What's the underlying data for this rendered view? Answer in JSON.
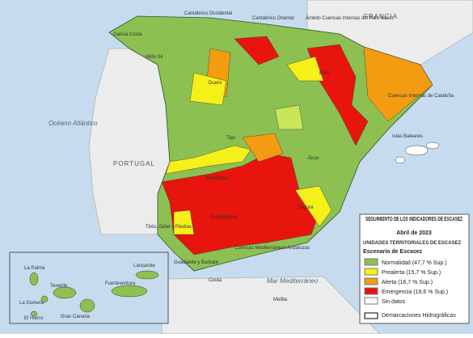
{
  "labels": {
    "france": "FRANCIA",
    "ocean": "Océano Atlántico",
    "portugal": "PORTUGAL",
    "sea": "Mar Mediterráneo",
    "baleares": "Islas Baleares",
    "ceuta": "Ceuta",
    "melilla": "Melilla"
  },
  "basins": [
    "Cantábrico Occidental",
    "Cantábrico Oriental",
    "Ámbito Cuencas Internas del País Vasco",
    "Galicia Costa",
    "Miño Sil",
    "Duero",
    "Ebro",
    "Cuencas Internas de Cataluña",
    "Tajo",
    "Júcar",
    "Guadiana",
    "Guadalquivir",
    "Segura",
    "Tinto, Odiel y Piedras",
    "Cuencas Mediterráneas Andaluzas",
    "Guadalete y Barbate"
  ],
  "islands": [
    "La Palma",
    "Lanzarote",
    "Tenerife",
    "Fuerteventura",
    "La Gomera",
    "Gran Canaria",
    "El Hierro"
  ],
  "legend": {
    "title": "SEGUIMIENTO DE LOS INDICADORES DE ESCASEZ",
    "date": "Abril de 2023",
    "units": "UNIDADES TERRITORIALES DE ESCASEZ",
    "scenario": "Escenario de Escasez",
    "items": [
      "Normalidad (47,7 % Sup.)",
      "Prealerta (15,7 % Sup.)",
      "Alerta (16,7 % Sup.)",
      "Emergencia (19,6 % Sup.)",
      "Sin datos"
    ],
    "boundaries": "Demarcaciones Hidrográficas"
  }
}
